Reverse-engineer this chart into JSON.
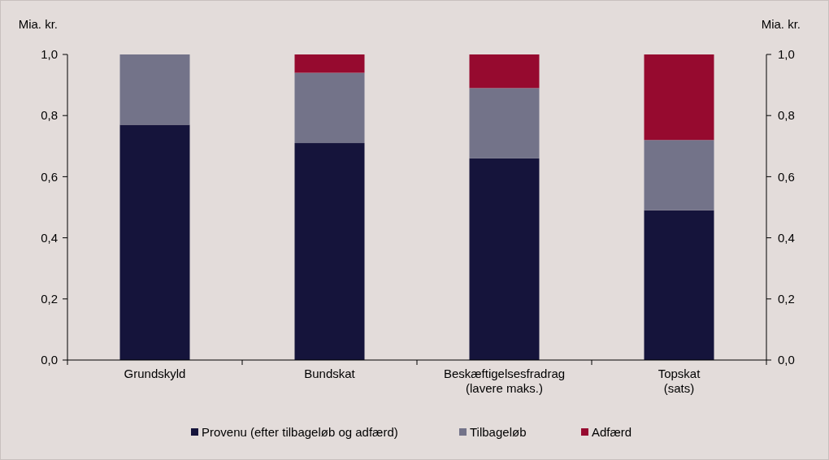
{
  "chart_data": {
    "type": "bar",
    "stacked": true,
    "ylabel": "Mia. kr.",
    "y2label": "Mia. kr.",
    "categories": [
      "Grundskyld",
      "Bundskat",
      "Beskæftigelsesfradrag\n(lavere maks.)",
      "Topskat\n(sats)"
    ],
    "series": [
      {
        "name": "Provenu (efter tilbageløb og adfærd)",
        "color": "#15143b",
        "values": [
          0.77,
          0.71,
          0.66,
          0.49
        ]
      },
      {
        "name": "Tilbageløb",
        "color": "#737389",
        "values": [
          0.23,
          0.23,
          0.23,
          0.23
        ]
      },
      {
        "name": "Adfærd",
        "color": "#960a2f",
        "values": [
          0,
          0.06,
          0.11,
          0.28
        ]
      }
    ],
    "ylim": [
      0,
      1
    ],
    "yticks": [
      {
        "value": 0,
        "label": "0,0"
      },
      {
        "value": 0.2,
        "label": "0,2"
      },
      {
        "value": 0.4,
        "label": "0,4"
      },
      {
        "value": 0.6,
        "label": "0,6"
      },
      {
        "value": 0.8,
        "label": "0,8"
      },
      {
        "value": 1,
        "label": "1,0"
      }
    ],
    "y2lim": [
      0,
      1
    ],
    "y2ticks": [
      {
        "value": 0,
        "label": "0,0"
      },
      {
        "value": 0.2,
        "label": "0,2"
      },
      {
        "value": 0.4,
        "label": "0,4"
      },
      {
        "value": 0.6,
        "label": "0,6"
      },
      {
        "value": 0.8,
        "label": "0,8"
      },
      {
        "value": 1,
        "label": "1,0"
      }
    ],
    "legend": "bottom",
    "grid": false
  }
}
